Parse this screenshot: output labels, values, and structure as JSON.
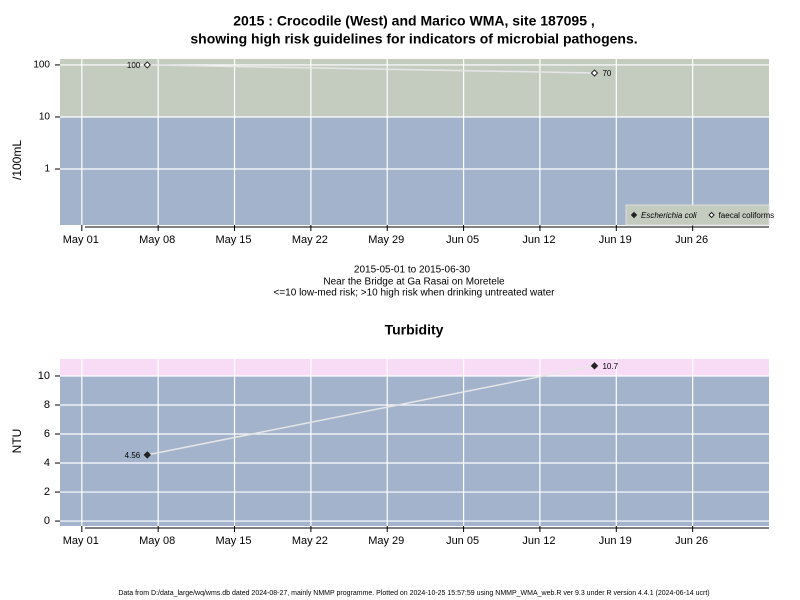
{
  "chart_data": [
    {
      "type": "scatter",
      "title": "2015 : Crocodile (West) and Marico WMA, site 187095 ,",
      "subtitle": "showing high risk guidelines for indicators of microbial pathogens.",
      "y_label": "/100mL",
      "log_y": true,
      "ylim": [
        0.084,
        130
      ],
      "yticks": [
        1,
        10,
        100
      ],
      "xlim": [
        "2015-04-29",
        "2015-07-03"
      ],
      "xticks": [
        {
          "value": "2015-05-01",
          "label": "May 01"
        },
        {
          "value": "2015-05-08",
          "label": "May 08"
        },
        {
          "value": "2015-05-15",
          "label": "May 15"
        },
        {
          "value": "2015-05-22",
          "label": "May 22"
        },
        {
          "value": "2015-05-29",
          "label": "May 29"
        },
        {
          "value": "2015-06-05",
          "label": "Jun 05"
        },
        {
          "value": "2015-06-12",
          "label": "Jun 12"
        },
        {
          "value": "2015-06-19",
          "label": "Jun 19"
        },
        {
          "value": "2015-06-26",
          "label": "Jun 26"
        }
      ],
      "threshold": 10,
      "low_color": "#a3b3cc",
      "high_color": "#c4ccc0",
      "grid": true,
      "legend": "bottom-right",
      "series": [
        {
          "name": "Escherichia coli",
          "marker": "filled",
          "color": "#222222",
          "x": [],
          "values": []
        },
        {
          "name": "faecal coliforms",
          "marker": "hollow",
          "color": "#222222",
          "x": [
            "2015-05-07",
            "2015-06-17"
          ],
          "values": [
            100,
            70
          ]
        }
      ],
      "notes": [
        "2015-05-01 to 2015-06-30",
        "Near the Bridge at Ga Rasai on Moretele",
        "<=10 low-med risk; >10 high risk when drinking untreated water"
      ]
    },
    {
      "type": "scatter",
      "title": "Turbidity",
      "y_label": "NTU",
      "log_y": false,
      "ylim": [
        -0.34,
        11.17
      ],
      "yticks": [
        0,
        2,
        4,
        6,
        8,
        10
      ],
      "xlim": [
        "2015-04-29",
        "2015-07-03"
      ],
      "xticks": [
        {
          "value": "2015-05-01",
          "label": "May 01"
        },
        {
          "value": "2015-05-08",
          "label": "May 08"
        },
        {
          "value": "2015-05-15",
          "label": "May 15"
        },
        {
          "value": "2015-05-22",
          "label": "May 22"
        },
        {
          "value": "2015-05-29",
          "label": "May 29"
        },
        {
          "value": "2015-06-05",
          "label": "Jun 05"
        },
        {
          "value": "2015-06-12",
          "label": "Jun 12"
        },
        {
          "value": "2015-06-19",
          "label": "Jun 19"
        },
        {
          "value": "2015-06-26",
          "label": "Jun 26"
        }
      ],
      "threshold": 10,
      "low_color": "#a3b3cc",
      "high_color": "#f8dcf6",
      "grid": true,
      "series": [
        {
          "name": "Turbidity",
          "marker": "filled",
          "color": "#222222",
          "x": [
            "2015-05-07",
            "2015-06-17"
          ],
          "values": [
            4.56,
            10.7
          ]
        }
      ]
    }
  ],
  "footer": "Data from D:/data_large/wq/wms.db dated 2024-08-27, mainly NMMP programme. Plotted on 2024-10-25 15:57:59 using NMMP_WMA_web.R ver 9.3 under R version 4.4.1 (2024-06-14 ucrt)"
}
